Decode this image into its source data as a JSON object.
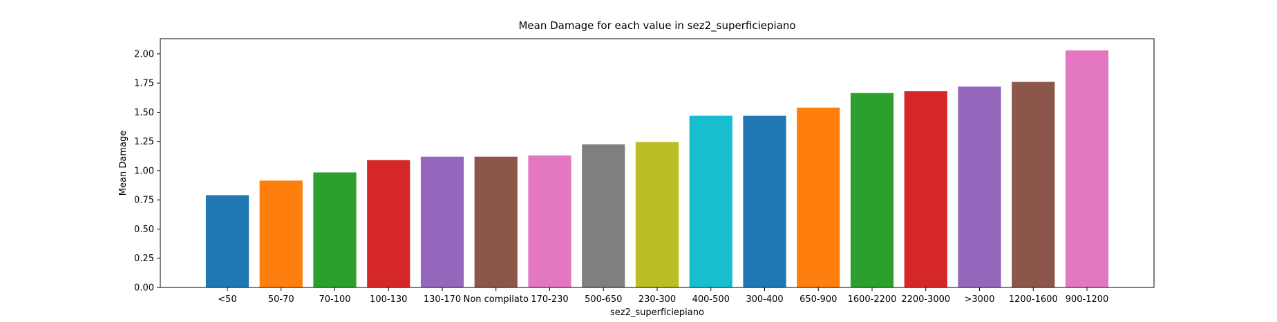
{
  "chart_data": {
    "type": "bar",
    "title": "Mean Damage for each value in sez2_superficiepiano",
    "xlabel": "sez2_superficiepiano",
    "ylabel": "Mean Damage",
    "ylim": [
      0,
      2.13
    ],
    "y_ticks": [
      "0.00",
      "0.25",
      "0.50",
      "0.75",
      "1.00",
      "1.25",
      "1.50",
      "1.75",
      "2.00"
    ],
    "grid": false,
    "categories": [
      "<50",
      "50-70",
      "70-100",
      "100-130",
      "130-170",
      "Non compilato",
      "170-230",
      "500-650",
      "230-300",
      "400-500",
      "300-400",
      "650-900",
      "1600-2200",
      "2200-3000",
      ">3000",
      "1200-1600",
      "900-1200"
    ],
    "values": [
      0.79,
      0.915,
      0.985,
      1.09,
      1.12,
      1.12,
      1.13,
      1.225,
      1.245,
      1.47,
      1.47,
      1.54,
      1.665,
      1.68,
      1.72,
      1.76,
      2.03
    ],
    "colors": [
      "#1f77b4",
      "#ff7f0e",
      "#2ca02c",
      "#d62728",
      "#9467bd",
      "#8c564b",
      "#e377c2",
      "#7f7f7f",
      "#bcbd22",
      "#17becf",
      "#1f77b4",
      "#ff7f0e",
      "#2ca02c",
      "#d62728",
      "#9467bd",
      "#8c564b",
      "#e377c2"
    ]
  }
}
